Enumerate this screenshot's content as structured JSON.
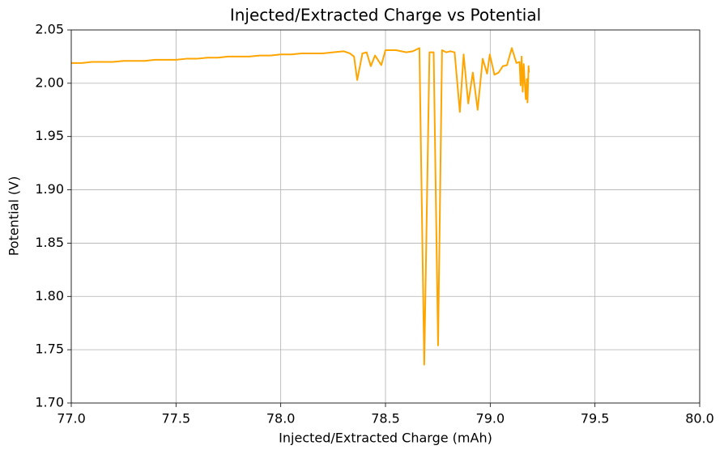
{
  "chart_data": {
    "type": "line",
    "title": "Injected/Extracted Charge vs Potential",
    "x_label": "Injected/Extracted Charge (mAh)",
    "y_label": "Potential (V)",
    "color": "#ffa500",
    "grid": true,
    "xlim": [
      77,
      80
    ],
    "xticks": [
      {
        "value": 77,
        "label": "77.0"
      },
      77.5,
      {
        "value": 78,
        "label": "78.0"
      },
      78.5,
      {
        "value": 79,
        "label": "79.0"
      },
      79.5,
      {
        "value": 80,
        "label": "80.0"
      }
    ],
    "ylim": [
      1.7,
      2.05
    ],
    "yticks": [
      {
        "value": 1.7,
        "label": "1.70"
      },
      1.75,
      {
        "value": 1.8,
        "label": "1.80"
      },
      1.85,
      {
        "value": 1.9,
        "label": "1.90"
      },
      1.95,
      {
        "value": 2,
        "label": "2.00"
      },
      2.05
    ],
    "x": [
      77,
      77.05,
      77.1,
      77.15,
      77.2,
      77.25,
      77.3,
      77.35,
      77.4,
      77.45,
      77.5,
      77.55,
      77.6,
      77.65,
      77.7,
      77.75,
      77.8,
      77.85,
      77.9,
      77.95,
      78,
      78.05,
      78.1,
      78.15,
      78.2,
      78.25,
      78.3,
      78.33,
      78.35,
      78.365,
      78.39,
      78.41,
      78.43,
      78.45,
      78.48,
      78.5,
      78.55,
      78.6,
      78.63,
      78.662,
      78.685,
      78.71,
      78.73,
      78.751,
      78.77,
      78.79,
      78.81,
      78.83,
      78.855,
      78.873,
      78.895,
      78.917,
      78.94,
      78.964,
      78.985,
      78.998,
      79.02,
      79.04,
      79.06,
      79.08,
      79.103,
      79.125,
      79.14,
      79.145,
      79.15,
      79.155,
      79.16,
      79.165,
      79.17,
      79.175,
      79.178,
      79.183,
      79.185
    ],
    "values": [
      2.019,
      2.019,
      2.02,
      2.02,
      2.02,
      2.021,
      2.021,
      2.021,
      2.022,
      2.022,
      2.022,
      2.023,
      2.023,
      2.024,
      2.024,
      2.025,
      2.025,
      2.025,
      2.026,
      2.026,
      2.027,
      2.027,
      2.028,
      2.028,
      2.028,
      2.029,
      2.03,
      2.028,
      2.025,
      2.003,
      2.028,
      2.029,
      2.016,
      2.026,
      2.017,
      2.031,
      2.031,
      2.029,
      2.03,
      2.033,
      1.736,
      2.029,
      2.029,
      1.754,
      2.031,
      2.029,
      2.03,
      2.029,
      1.973,
      2.027,
      1.981,
      2.01,
      1.975,
      2.023,
      2.009,
      2.027,
      2.008,
      2.01,
      2.016,
      2.017,
      2.033,
      2.019,
      2.02,
      1.998,
      2.025,
      1.992,
      2.018,
      2,
      1.985,
      2.004,
      1.982,
      2.016,
      2.01
    ]
  }
}
